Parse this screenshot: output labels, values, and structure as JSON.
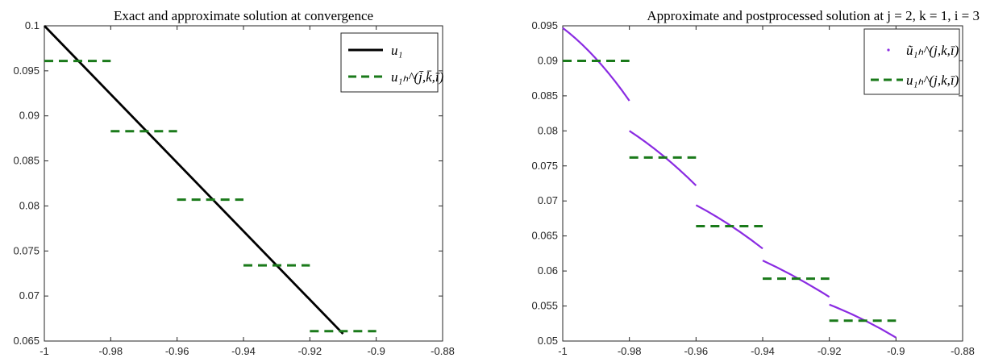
{
  "chart_data": [
    {
      "type": "line",
      "title": "Exact and approximate solution at convergence",
      "xlim": [
        -1,
        -0.88
      ],
      "ylim": [
        0.065,
        0.1
      ],
      "xticks": [
        "-1",
        "-0.98",
        "-0.96",
        "-0.94",
        "-0.92",
        "-0.9",
        "-0.88"
      ],
      "yticks": [
        "0.065",
        "0.07",
        "0.075",
        "0.08",
        "0.085",
        "0.09",
        "0.095",
        "0.1"
      ],
      "legend_position": "top-right",
      "series": [
        {
          "name": "u₁",
          "style": "solid",
          "color": "#000000",
          "x": [
            -1.0,
            -0.91
          ],
          "y": [
            0.1,
            0.0658
          ]
        },
        {
          "name": "u₁ₕ^(j̄,k̄,ī)",
          "style": "dashed",
          "color": "#1a7a1a",
          "segments": [
            {
              "x": [
                -1.0,
                -0.98
              ],
              "y": 0.0961
            },
            {
              "x": [
                -0.98,
                -0.96
              ],
              "y": 0.0883
            },
            {
              "x": [
                -0.96,
                -0.94
              ],
              "y": 0.0807
            },
            {
              "x": [
                -0.94,
                -0.92
              ],
              "y": 0.0734
            },
            {
              "x": [
                -0.92,
                -0.9
              ],
              "y": 0.0661
            }
          ]
        }
      ]
    },
    {
      "type": "line",
      "title": "Approximate and postprocessed solution at j = 2, k = 1, i = 3",
      "xlim": [
        -1,
        -0.88
      ],
      "ylim": [
        0.05,
        0.095
      ],
      "xticks": [
        "-1",
        "-0.98",
        "-0.96",
        "-0.94",
        "-0.92",
        "-0.9",
        "-0.88"
      ],
      "yticks": [
        "0.05",
        "0.055",
        "0.06",
        "0.065",
        "0.07",
        "0.075",
        "0.08",
        "0.085",
        "0.09",
        "0.095"
      ],
      "legend_position": "top-right",
      "series": [
        {
          "name": "ũ₁ₕ^(j,k,ī)",
          "style": "dotted",
          "color": "#8a2be2",
          "segments": [
            {
              "x": [
                -1.0,
                -0.99,
                -0.98
              ],
              "y": [
                0.0947,
                0.0903,
                0.0843
              ]
            },
            {
              "x": [
                -0.98,
                -0.97,
                -0.96
              ],
              "y": [
                0.08,
                0.0765,
                0.0722
              ]
            },
            {
              "x": [
                -0.96,
                -0.95,
                -0.94
              ],
              "y": [
                0.0694,
                0.0666,
                0.0632
              ]
            },
            {
              "x": [
                -0.94,
                -0.93,
                -0.92
              ],
              "y": [
                0.0615,
                0.0591,
                0.0563
              ]
            },
            {
              "x": [
                -0.92,
                -0.91,
                -0.9
              ],
              "y": [
                0.0552,
                0.0531,
                0.0505
              ]
            }
          ]
        },
        {
          "name": "u₁ₕ^(j,k,ī)",
          "style": "dashed",
          "color": "#1a7a1a",
          "segments": [
            {
              "x": [
                -1.0,
                -0.98
              ],
              "y": 0.09
            },
            {
              "x": [
                -0.98,
                -0.96
              ],
              "y": 0.0762
            },
            {
              "x": [
                -0.96,
                -0.94
              ],
              "y": 0.0664
            },
            {
              "x": [
                -0.94,
                -0.92
              ],
              "y": 0.0589
            },
            {
              "x": [
                -0.92,
                -0.9
              ],
              "y": 0.0529
            }
          ]
        }
      ]
    }
  ]
}
